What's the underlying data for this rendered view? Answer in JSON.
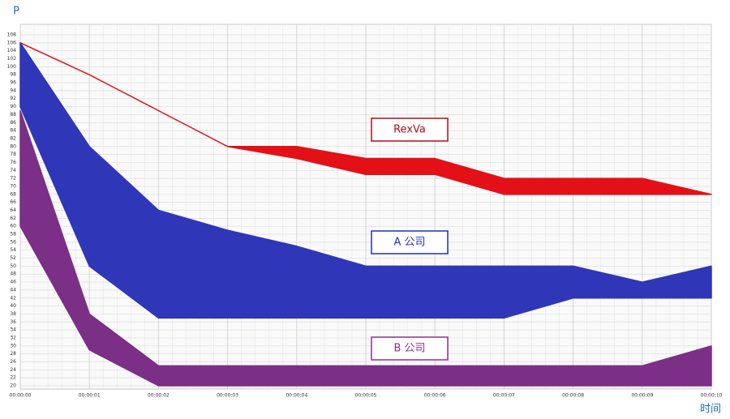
{
  "chart_data": {
    "type": "range-area",
    "y_label": "P",
    "x_label": "时间",
    "categories": [
      "00:00:00",
      "00:00:01",
      "00:00:02",
      "00:00:03",
      "00:00:04",
      "00:00:05",
      "00:00:06",
      "00:00:07",
      "00:00:08",
      "00:00:09",
      "00:00:10"
    ],
    "ylim": [
      20,
      108
    ],
    "yticks": [
      20,
      22,
      24,
      26,
      28,
      30,
      32,
      34,
      36,
      38,
      40,
      42,
      44,
      46,
      48,
      50,
      52,
      54,
      56,
      58,
      60,
      62,
      64,
      66,
      68,
      70,
      72,
      74,
      76,
      78,
      80,
      82,
      84,
      86,
      88,
      90,
      92,
      94,
      96,
      98,
      100,
      102,
      104,
      106,
      108
    ],
    "grid": true,
    "series": [
      {
        "name": "RexVa",
        "color": "#e31018",
        "label_color": "#b0101a",
        "upper": [
          106,
          98,
          89,
          80,
          80,
          77,
          77,
          72,
          72,
          72,
          68
        ],
        "lower": [
          106,
          98,
          89,
          80,
          77,
          73,
          73,
          68,
          68,
          68,
          68
        ]
      },
      {
        "name": "A  公司",
        "color": "#2f36b8",
        "label_color": "#2030c0",
        "upper": [
          106,
          80,
          64,
          59,
          55,
          50,
          50,
          50,
          50,
          46,
          50
        ],
        "lower": [
          90,
          50,
          37,
          37,
          37,
          37,
          37,
          37,
          42,
          42,
          42
        ]
      },
      {
        "name": "B  公司",
        "color": "#7b2f86",
        "label_color": "#8a3090",
        "upper": [
          89,
          38,
          25,
          25,
          25,
          25,
          25,
          25,
          25,
          25,
          30
        ],
        "lower": [
          60,
          29,
          20,
          20,
          20,
          20,
          20,
          20,
          20,
          20,
          20
        ]
      }
    ]
  }
}
